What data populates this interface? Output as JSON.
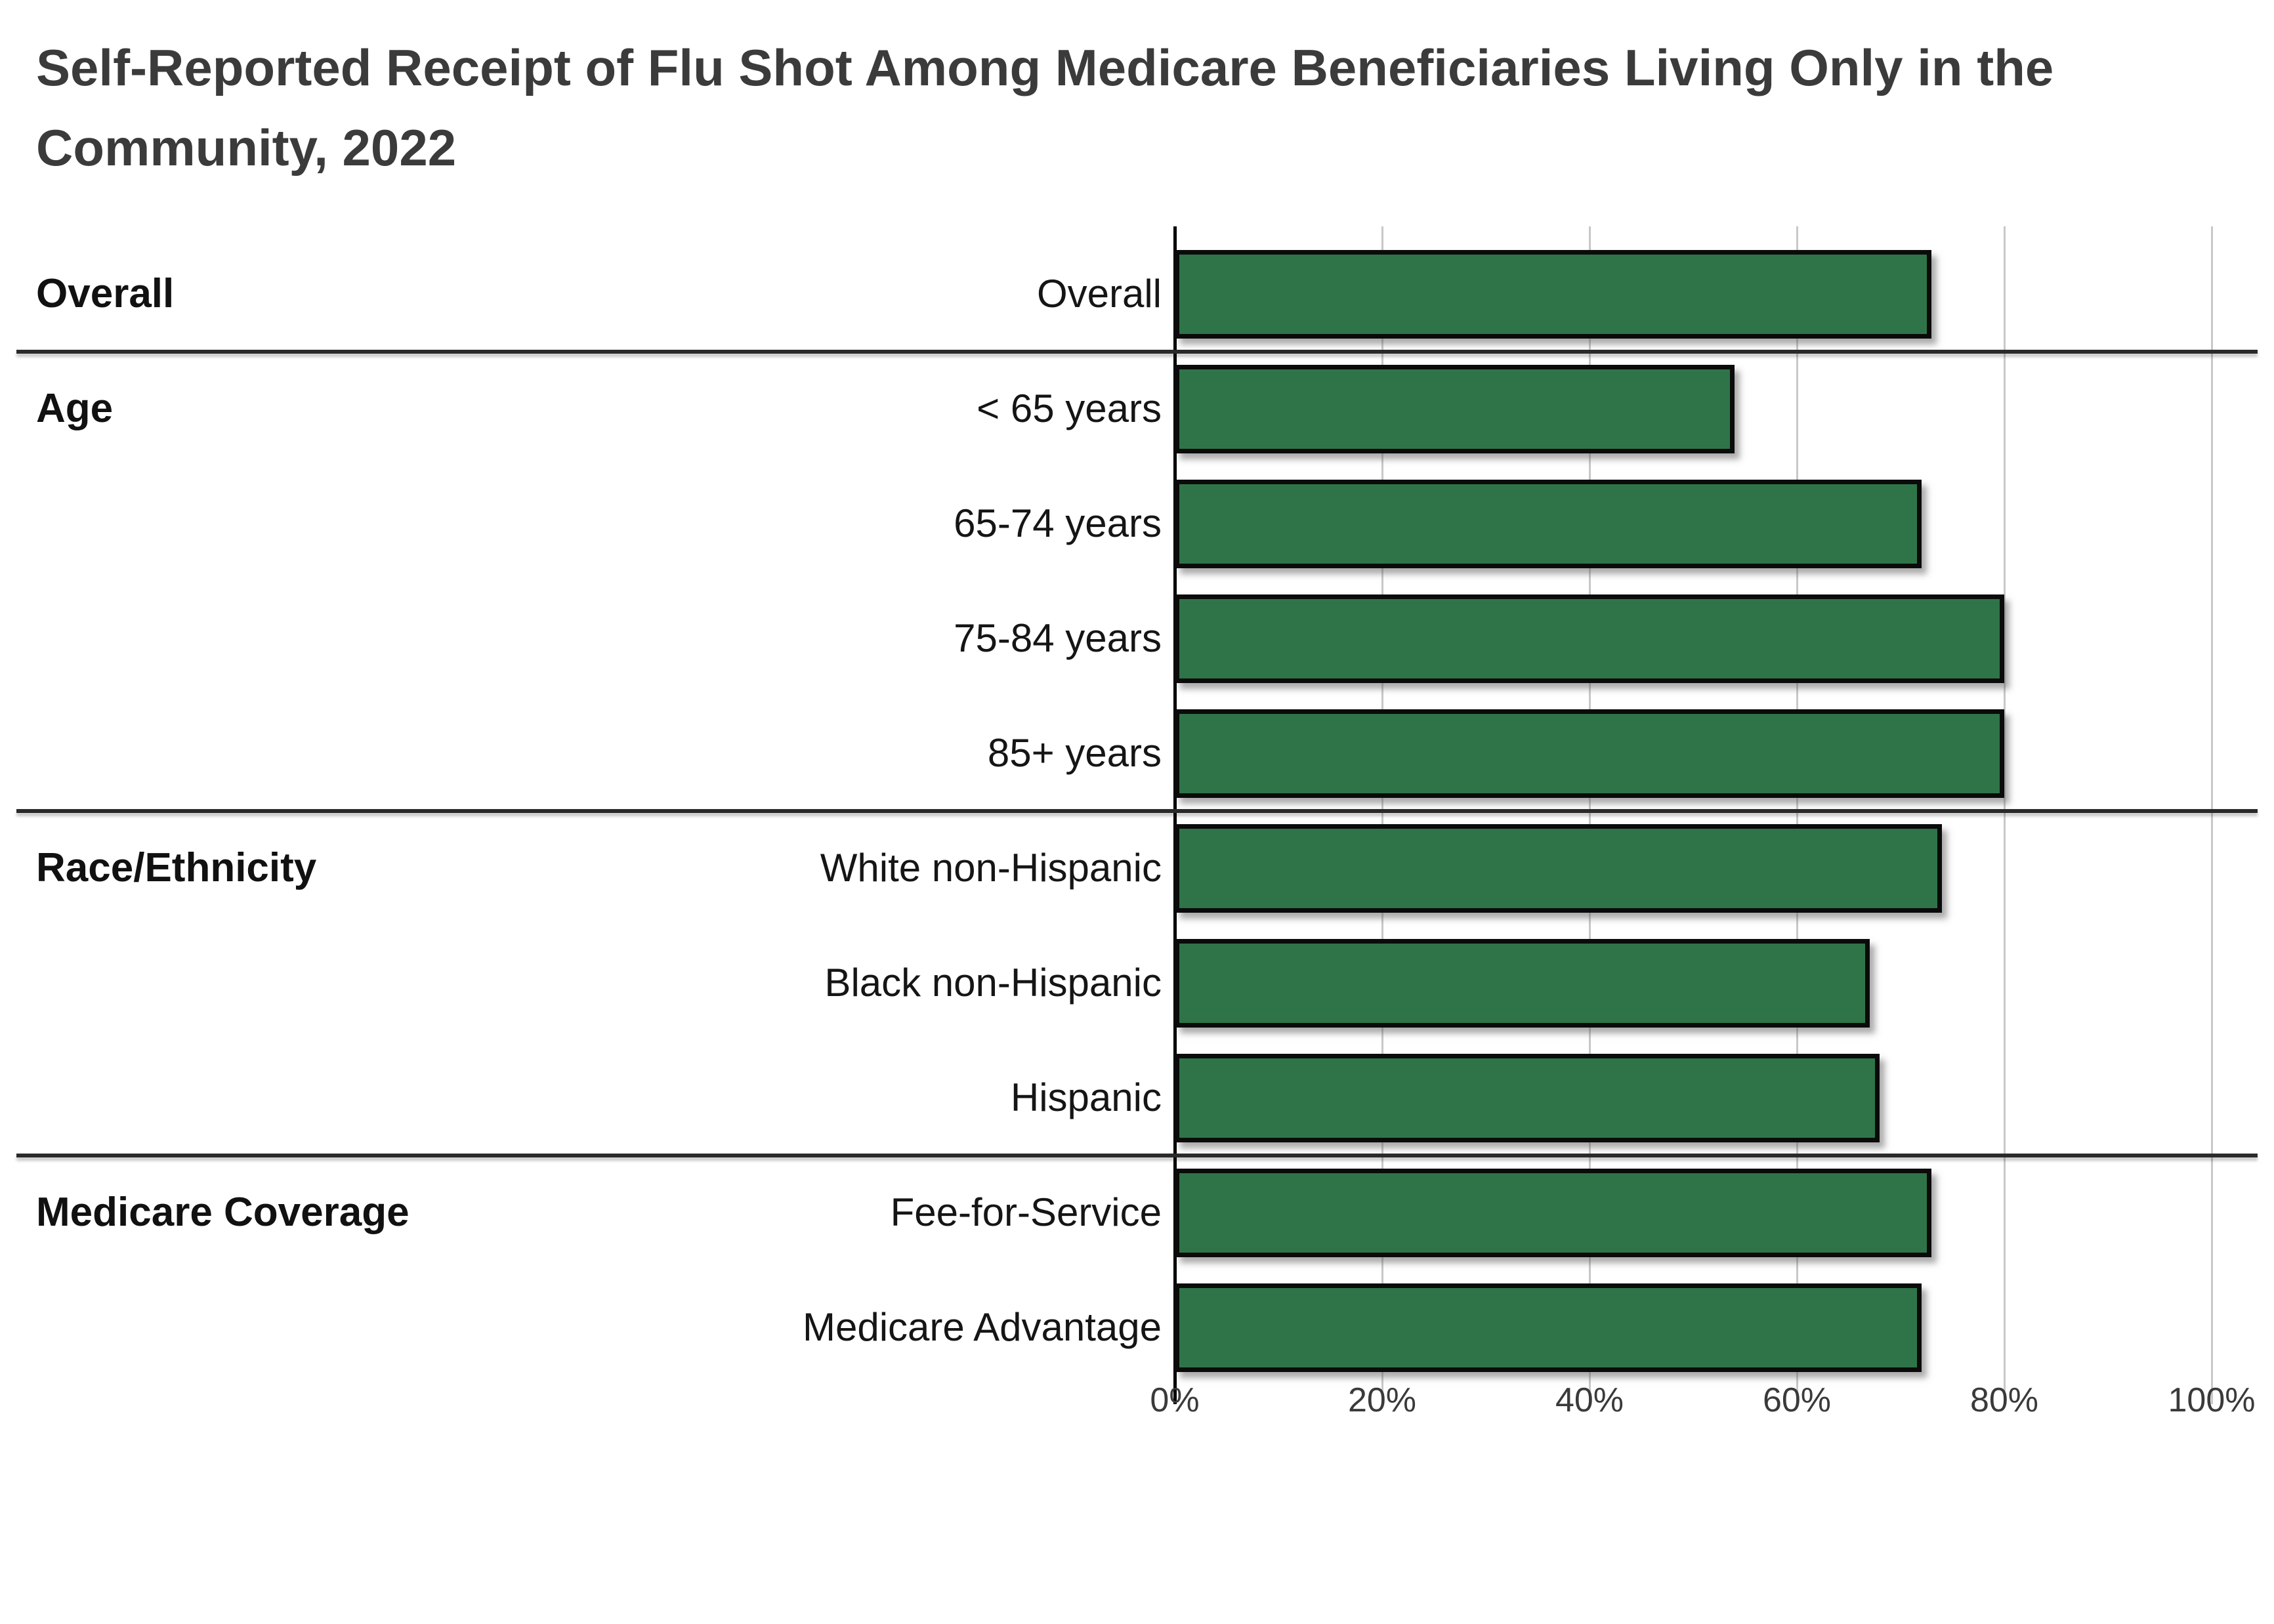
{
  "title": {
    "line1": "Self-Reported Receipt of Flu Shot Among Medicare Beneficiaries Living Only in the",
    "line2": "Community, 2022",
    "full": "Self-Reported Receipt of Flu Shot Among Medicare Beneficiaries Living Only in the Community, 2022"
  },
  "chart_data": {
    "type": "bar",
    "orientation": "horizontal",
    "title": "Self-Reported Receipt of Flu Shot Among Medicare Beneficiaries Living Only in the Community, 2022",
    "unit": "percent",
    "xlabel": "",
    "ylabel": "",
    "xlim": [
      0,
      100
    ],
    "x_ticks": [
      "0%",
      "20%",
      "40%",
      "60%",
      "80%",
      "100%"
    ],
    "x_tick_values": [
      0,
      20,
      40,
      60,
      80,
      100
    ],
    "grid": true,
    "legend": false,
    "bar_color": "#2f7448",
    "bar_border_color": "#0b0b0b",
    "categories": [
      "Overall",
      "< 65 years",
      "65-74 years",
      "75-84 years",
      "85+ years",
      "White non-Hispanic",
      "Black non-Hispanic",
      "Hispanic",
      "Fee-for-Service",
      "Medicare Advantage"
    ],
    "values": [
      73,
      54,
      72,
      80,
      80,
      74,
      67,
      68,
      73,
      72
    ],
    "groups": [
      {
        "label": "Overall",
        "rows": [
          {
            "category": "Overall",
            "value": 73
          }
        ]
      },
      {
        "label": "Age",
        "rows": [
          {
            "category": "< 65 years",
            "value": 54
          },
          {
            "category": "65-74 years",
            "value": 72
          },
          {
            "category": "75-84 years",
            "value": 80
          },
          {
            "category": "85+ years",
            "value": 80
          }
        ]
      },
      {
        "label": "Race/Ethnicity",
        "rows": [
          {
            "category": "White non-Hispanic",
            "value": 74
          },
          {
            "category": "Black non-Hispanic",
            "value": 67
          },
          {
            "category": "Hispanic",
            "value": 68
          }
        ]
      },
      {
        "label": "Medicare Coverage",
        "rows": [
          {
            "category": "Fee-for-Service",
            "value": 73
          },
          {
            "category": "Medicare Advantage",
            "value": 72
          }
        ]
      }
    ]
  }
}
